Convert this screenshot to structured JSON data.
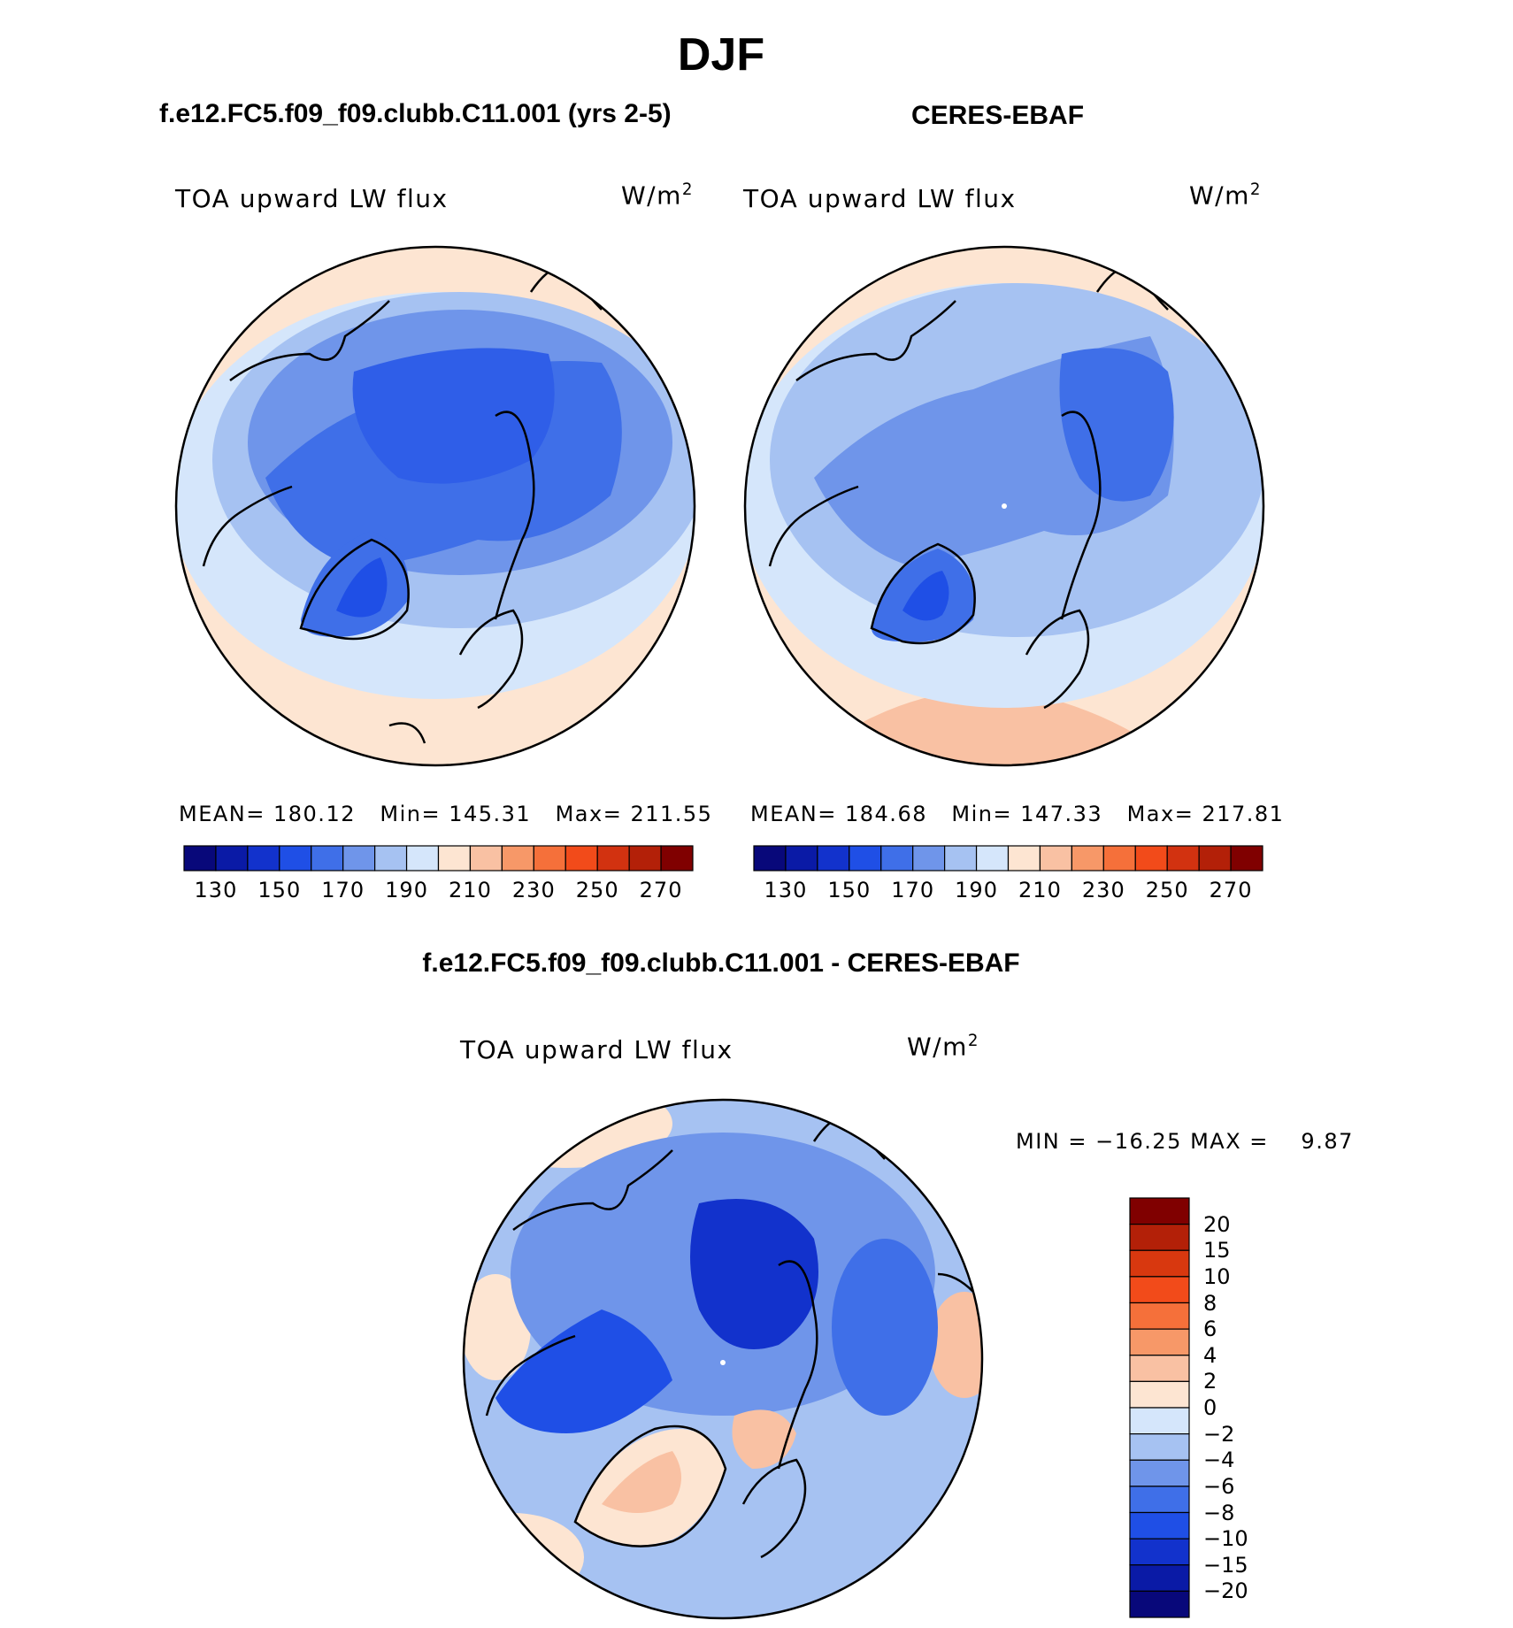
{
  "figure": {
    "season": "DJF",
    "panel1_title": "f.e12.FC5.f09_f09.clubb.C11.001 (yrs 2-5)",
    "panel2_title": "CERES-EBAF",
    "diff_title": "f.e12.FC5.f09_f09.clubb.C11.001 - CERES-EBAF"
  },
  "chart_data": [
    {
      "type": "heatmap",
      "projection": "north-polar-stereographic",
      "variable": "TOA upward LW flux",
      "units_base": "W/m",
      "units_exp": "2",
      "stats": {
        "mean_label": "MEAN=",
        "mean": "180.12",
        "min_label": "Min=",
        "min": "145.31",
        "max_label": "Max=",
        "max": "211.55"
      },
      "colorbar": {
        "levels": [
          130,
          140,
          150,
          160,
          170,
          180,
          190,
          200,
          210,
          220,
          230,
          240,
          250,
          260,
          270
        ],
        "tick_labels": [
          "130",
          "150",
          "170",
          "190",
          "210",
          "230",
          "250",
          "270"
        ],
        "colors": [
          "#08087a",
          "#0a1aa6",
          "#1232cc",
          "#1f4fe6",
          "#3f6fe8",
          "#6f95ea",
          "#a6c2f2",
          "#d5e6fb",
          "#fde5d2",
          "#f9c1a3",
          "#f79868",
          "#f5703a",
          "#f24b1a",
          "#d23210",
          "#b32008",
          "#800000"
        ]
      }
    },
    {
      "type": "heatmap",
      "projection": "north-polar-stereographic",
      "variable": "TOA upward LW flux",
      "units_base": "W/m",
      "units_exp": "2",
      "stats": {
        "mean_label": "MEAN=",
        "mean": "184.68",
        "min_label": "Min=",
        "min": "147.33",
        "max_label": "Max=",
        "max": "217.81"
      },
      "colorbar": {
        "levels": [
          130,
          140,
          150,
          160,
          170,
          180,
          190,
          200,
          210,
          220,
          230,
          240,
          250,
          260,
          270
        ],
        "tick_labels": [
          "130",
          "150",
          "170",
          "190",
          "210",
          "230",
          "250",
          "270"
        ],
        "colors": [
          "#08087a",
          "#0a1aa6",
          "#1232cc",
          "#1f4fe6",
          "#3f6fe8",
          "#6f95ea",
          "#a6c2f2",
          "#d5e6fb",
          "#fde5d2",
          "#f9c1a3",
          "#f79868",
          "#f5703a",
          "#f24b1a",
          "#d23210",
          "#b32008",
          "#800000"
        ]
      }
    },
    {
      "type": "heatmap",
      "projection": "north-polar-stereographic",
      "variable": "TOA upward LW flux",
      "units_base": "W/m",
      "units_exp": "2",
      "stats": {
        "min_label": "MIN =",
        "min": "−16.25",
        "max_label": "MAX =",
        "max": "9.87"
      },
      "colorbar": {
        "orientation": "vertical",
        "tick_labels": [
          "20",
          "15",
          "10",
          "8",
          "6",
          "4",
          "2",
          "0",
          "−2",
          "−4",
          "−6",
          "−8",
          "−10",
          "−15",
          "−20"
        ],
        "colors": [
          "#800000",
          "#b32008",
          "#d8380f",
          "#f24b1a",
          "#f5703a",
          "#f79868",
          "#f9c1a3",
          "#fde5d2",
          "#d5e6fb",
          "#a6c2f2",
          "#6f95ea",
          "#3f6fe8",
          "#1f4fe6",
          "#1232cc",
          "#0a1aa6",
          "#08087a"
        ]
      }
    }
  ]
}
